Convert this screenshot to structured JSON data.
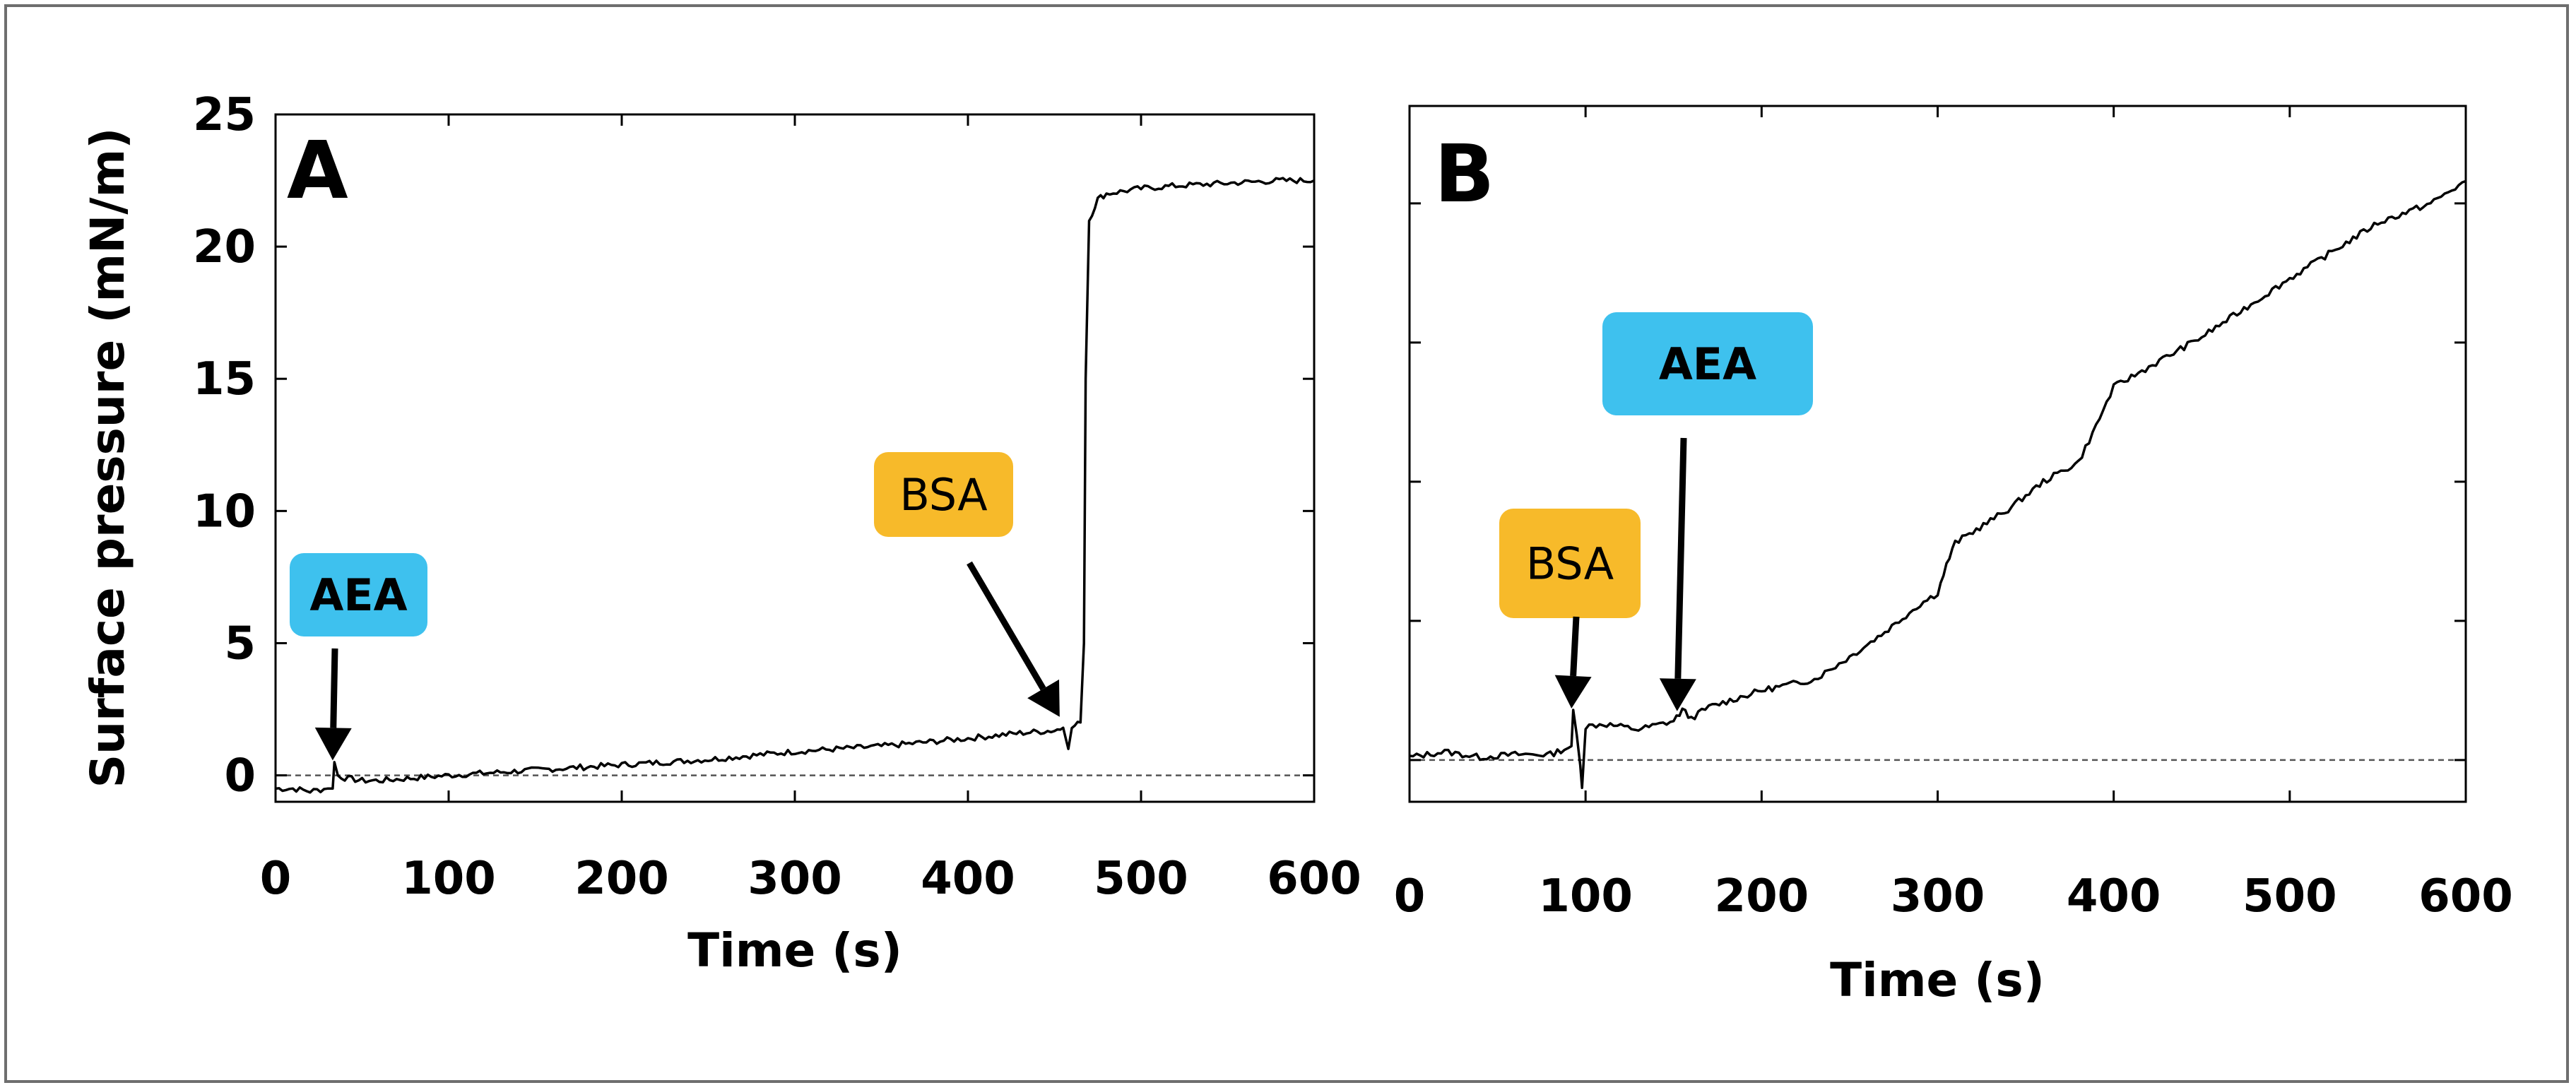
{
  "colors": {
    "aea_box": "#3EC1EE",
    "bsa_box": "#F7BA2A",
    "trace": "#000000",
    "frame": "#6e6e6e"
  },
  "chart_data": [
    {
      "type": "line",
      "panel_label": "A",
      "xlabel": "Time (s)",
      "ylabel": "Surface pressure (mN/m)",
      "xlim": [
        0,
        600
      ],
      "ylim": [
        -1,
        25
      ],
      "xticks": [
        0,
        100,
        200,
        300,
        400,
        500,
        600
      ],
      "yticks": [
        0,
        5,
        10,
        15,
        20,
        25
      ],
      "baseline_y": 0,
      "series": [
        {
          "name": "Surface pressure",
          "x": [
            0,
            10,
            20,
            30,
            33,
            34,
            36,
            40,
            50,
            60,
            80,
            100,
            150,
            200,
            250,
            300,
            350,
            400,
            430,
            450,
            455,
            458,
            460,
            465,
            467,
            468,
            470,
            475,
            480,
            500,
            520,
            550,
            580,
            600
          ],
          "y": [
            -0.5,
            -0.5,
            -0.6,
            -0.5,
            -0.5,
            0.5,
            0.0,
            -0.1,
            -0.2,
            -0.2,
            -0.1,
            0.0,
            0.2,
            0.4,
            0.6,
            0.9,
            1.1,
            1.4,
            1.6,
            1.7,
            1.8,
            1.0,
            1.8,
            2.0,
            5.0,
            15.0,
            21.0,
            21.8,
            22.0,
            22.2,
            22.3,
            22.4,
            22.5,
            22.5
          ]
        }
      ],
      "annotations": [
        {
          "label": "AEA",
          "x": 33,
          "y": 0.3,
          "bold": true,
          "color": "aea"
        },
        {
          "label": "BSA",
          "x": 453,
          "y": 2.0,
          "bold": false,
          "color": "bsa"
        }
      ]
    },
    {
      "type": "line",
      "panel_label": "B",
      "xlabel": "Time (s)",
      "ylabel": "",
      "xlim": [
        0,
        600
      ],
      "ylim": [
        -1.5,
        23.5
      ],
      "xticks": [
        0,
        100,
        200,
        300,
        400,
        500,
        600
      ],
      "yticks": [
        0,
        5,
        10,
        15,
        20
      ],
      "show_ytick_labels": false,
      "baseline_y": 0,
      "series": [
        {
          "name": "Surface pressure",
          "x": [
            0,
            20,
            40,
            60,
            80,
            92,
            93,
            95,
            97,
            98,
            100,
            110,
            130,
            150,
            155,
            160,
            170,
            200,
            230,
            250,
            270,
            290,
            300,
            305,
            310,
            320,
            340,
            360,
            380,
            390,
            400,
            450,
            500,
            550,
            580,
            600
          ],
          "y": [
            0.1,
            0.3,
            0.1,
            0.2,
            0.2,
            0.5,
            1.8,
            0.9,
            -0.2,
            -1.0,
            1.2,
            1.3,
            1.1,
            1.4,
            1.8,
            1.5,
            1.9,
            2.5,
            2.9,
            3.7,
            4.6,
            5.6,
            6.0,
            7.0,
            7.8,
            8.2,
            9.0,
            10.0,
            10.7,
            12.0,
            13.4,
            15.2,
            17.3,
            19.3,
            20.0,
            20.8
          ]
        }
      ],
      "annotations": [
        {
          "label": "BSA",
          "x": 92,
          "y": 1.6,
          "bold": false,
          "color": "bsa"
        },
        {
          "label": "AEA",
          "x": 152,
          "y": 1.5,
          "bold": true,
          "color": "aea"
        }
      ]
    }
  ]
}
